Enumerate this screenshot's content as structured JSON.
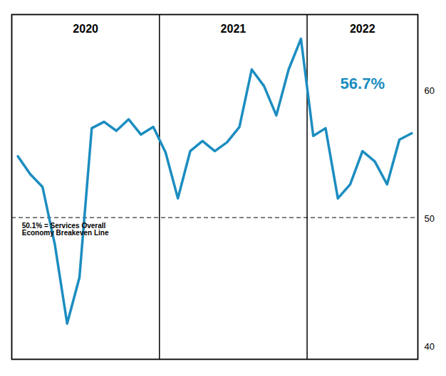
{
  "chart_data": {
    "type": "line",
    "x": [
      0,
      1,
      2,
      3,
      4,
      5,
      6,
      7,
      8,
      9,
      10,
      11,
      12,
      13,
      14,
      15,
      16,
      17,
      18,
      19,
      20,
      21,
      22,
      23,
      24,
      25,
      26,
      27,
      28,
      29,
      30,
      31,
      32
    ],
    "values": [
      54.9,
      53.5,
      52.5,
      48.0,
      41.8,
      45.4,
      57.1,
      57.6,
      56.9,
      57.8,
      56.6,
      57.2,
      55.2,
      51.6,
      55.3,
      56.1,
      55.3,
      56.0,
      57.2,
      61.7,
      60.4,
      58.1,
      61.7,
      64.1,
      56.5,
      57.1,
      51.6,
      52.7,
      55.3,
      54.5,
      52.7,
      56.2,
      56.7
    ],
    "color": "#1B8DC0",
    "xlim": [
      -0.5,
      32.5
    ],
    "ylim": [
      39.0,
      66.0
    ],
    "yticks": [
      40,
      50,
      60
    ],
    "tick_labels": "y",
    "grid": false,
    "reference_line": {
      "value": 50.1,
      "line_style": "dashed",
      "labels": [
        "50.1% = Services Overall",
        "Economy Breakeven Line"
      ]
    },
    "sections": {
      "boundaries": [
        11.5,
        23.5
      ],
      "labels": [
        "2020",
        "2021",
        "2022"
      ]
    },
    "annotations": [
      {
        "text": "56.7%",
        "color": "#1B8DC0"
      }
    ]
  }
}
